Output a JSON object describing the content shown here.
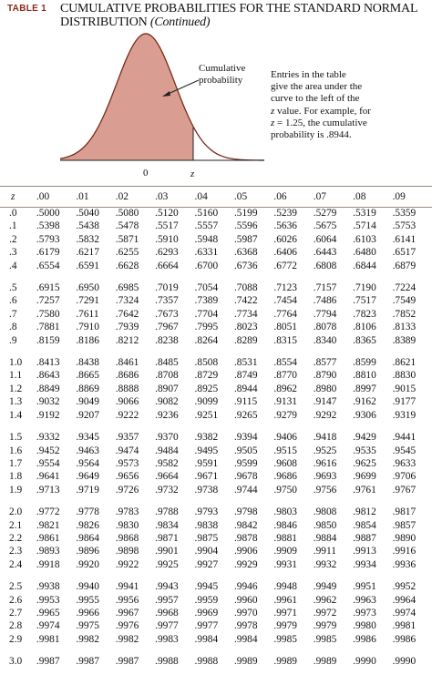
{
  "header": {
    "table_label": "TABLE 1",
    "title_line1": "CUMULATIVE PROBABILITIES FOR THE STANDARD NORMAL",
    "title_line2": "DISTRIBUTION",
    "title_continued": "(Continued)"
  },
  "figure": {
    "curve_label_line1": "Cumulative",
    "curve_label_line2": "probability",
    "origin_label": "0",
    "z_label": "z",
    "shade_color": "#d99e91",
    "curve_color": "#7a2a1a"
  },
  "description": {
    "line1": "Entries in the table",
    "line2": "give the area under the",
    "line3": "curve to the left of the",
    "line4a": "z",
    "line4b": " value. For example, for",
    "line5a": "z",
    "line5b": " = 1.25, the cumulative",
    "line6": "probability is .8944."
  },
  "table": {
    "z_header": "z",
    "columns": [
      ".00",
      ".01",
      ".02",
      ".03",
      ".04",
      ".05",
      ".06",
      ".07",
      ".08",
      ".09"
    ],
    "groups": [
      [
        {
          "z": ".0",
          "values": [
            ".5000",
            ".5040",
            ".5080",
            ".5120",
            ".5160",
            ".5199",
            ".5239",
            ".5279",
            ".5319",
            ".5359"
          ]
        },
        {
          "z": ".1",
          "values": [
            ".5398",
            ".5438",
            ".5478",
            ".5517",
            ".5557",
            ".5596",
            ".5636",
            ".5675",
            ".5714",
            ".5753"
          ]
        },
        {
          "z": ".2",
          "values": [
            ".5793",
            ".5832",
            ".5871",
            ".5910",
            ".5948",
            ".5987",
            ".6026",
            ".6064",
            ".6103",
            ".6141"
          ]
        },
        {
          "z": ".3",
          "values": [
            ".6179",
            ".6217",
            ".6255",
            ".6293",
            ".6331",
            ".6368",
            ".6406",
            ".6443",
            ".6480",
            ".6517"
          ]
        },
        {
          "z": ".4",
          "values": [
            ".6554",
            ".6591",
            ".6628",
            ".6664",
            ".6700",
            ".6736",
            ".6772",
            ".6808",
            ".6844",
            ".6879"
          ]
        }
      ],
      [
        {
          "z": ".5",
          "values": [
            ".6915",
            ".6950",
            ".6985",
            ".7019",
            ".7054",
            ".7088",
            ".7123",
            ".7157",
            ".7190",
            ".7224"
          ]
        },
        {
          "z": ".6",
          "values": [
            ".7257",
            ".7291",
            ".7324",
            ".7357",
            ".7389",
            ".7422",
            ".7454",
            ".7486",
            ".7517",
            ".7549"
          ]
        },
        {
          "z": ".7",
          "values": [
            ".7580",
            ".7611",
            ".7642",
            ".7673",
            ".7704",
            ".7734",
            ".7764",
            ".7794",
            ".7823",
            ".7852"
          ]
        },
        {
          "z": ".8",
          "values": [
            ".7881",
            ".7910",
            ".7939",
            ".7967",
            ".7995",
            ".8023",
            ".8051",
            ".8078",
            ".8106",
            ".8133"
          ]
        },
        {
          "z": ".9",
          "values": [
            ".8159",
            ".8186",
            ".8212",
            ".8238",
            ".8264",
            ".8289",
            ".8315",
            ".8340",
            ".8365",
            ".8389"
          ]
        }
      ],
      [
        {
          "z": "1.0",
          "values": [
            ".8413",
            ".8438",
            ".8461",
            ".8485",
            ".8508",
            ".8531",
            ".8554",
            ".8577",
            ".8599",
            ".8621"
          ]
        },
        {
          "z": "1.1",
          "values": [
            ".8643",
            ".8665",
            ".8686",
            ".8708",
            ".8729",
            ".8749",
            ".8770",
            ".8790",
            ".8810",
            ".8830"
          ]
        },
        {
          "z": "1.2",
          "values": [
            ".8849",
            ".8869",
            ".8888",
            ".8907",
            ".8925",
            ".8944",
            ".8962",
            ".8980",
            ".8997",
            ".9015"
          ]
        },
        {
          "z": "1.3",
          "values": [
            ".9032",
            ".9049",
            ".9066",
            ".9082",
            ".9099",
            ".9115",
            ".9131",
            ".9147",
            ".9162",
            ".9177"
          ]
        },
        {
          "z": "1.4",
          "values": [
            ".9192",
            ".9207",
            ".9222",
            ".9236",
            ".9251",
            ".9265",
            ".9279",
            ".9292",
            ".9306",
            ".9319"
          ]
        }
      ],
      [
        {
          "z": "1.5",
          "values": [
            ".9332",
            ".9345",
            ".9357",
            ".9370",
            ".9382",
            ".9394",
            ".9406",
            ".9418",
            ".9429",
            ".9441"
          ]
        },
        {
          "z": "1.6",
          "values": [
            ".9452",
            ".9463",
            ".9474",
            ".9484",
            ".9495",
            ".9505",
            ".9515",
            ".9525",
            ".9535",
            ".9545"
          ]
        },
        {
          "z": "1.7",
          "values": [
            ".9554",
            ".9564",
            ".9573",
            ".9582",
            ".9591",
            ".9599",
            ".9608",
            ".9616",
            ".9625",
            ".9633"
          ]
        },
        {
          "z": "1.8",
          "values": [
            ".9641",
            ".9649",
            ".9656",
            ".9664",
            ".9671",
            ".9678",
            ".9686",
            ".9693",
            ".9699",
            ".9706"
          ]
        },
        {
          "z": "1.9",
          "values": [
            ".9713",
            ".9719",
            ".9726",
            ".9732",
            ".9738",
            ".9744",
            ".9750",
            ".9756",
            ".9761",
            ".9767"
          ]
        }
      ],
      [
        {
          "z": "2.0",
          "values": [
            ".9772",
            ".9778",
            ".9783",
            ".9788",
            ".9793",
            ".9798",
            ".9803",
            ".9808",
            ".9812",
            ".9817"
          ]
        },
        {
          "z": "2.1",
          "values": [
            ".9821",
            ".9826",
            ".9830",
            ".9834",
            ".9838",
            ".9842",
            ".9846",
            ".9850",
            ".9854",
            ".9857"
          ]
        },
        {
          "z": "2.2",
          "values": [
            ".9861",
            ".9864",
            ".9868",
            ".9871",
            ".9875",
            ".9878",
            ".9881",
            ".9884",
            ".9887",
            ".9890"
          ]
        },
        {
          "z": "2.3",
          "values": [
            ".9893",
            ".9896",
            ".9898",
            ".9901",
            ".9904",
            ".9906",
            ".9909",
            ".9911",
            ".9913",
            ".9916"
          ]
        },
        {
          "z": "2.4",
          "values": [
            ".9918",
            ".9920",
            ".9922",
            ".9925",
            ".9927",
            ".9929",
            ".9931",
            ".9932",
            ".9934",
            ".9936"
          ]
        }
      ],
      [
        {
          "z": "2.5",
          "values": [
            ".9938",
            ".9940",
            ".9941",
            ".9943",
            ".9945",
            ".9946",
            ".9948",
            ".9949",
            ".9951",
            ".9952"
          ]
        },
        {
          "z": "2.6",
          "values": [
            ".9953",
            ".9955",
            ".9956",
            ".9957",
            ".9959",
            ".9960",
            ".9961",
            ".9962",
            ".9963",
            ".9964"
          ]
        },
        {
          "z": "2.7",
          "values": [
            ".9965",
            ".9966",
            ".9967",
            ".9968",
            ".9969",
            ".9970",
            ".9971",
            ".9972",
            ".9973",
            ".9974"
          ]
        },
        {
          "z": "2.8",
          "values": [
            ".9974",
            ".9975",
            ".9976",
            ".9977",
            ".9977",
            ".9978",
            ".9979",
            ".9979",
            ".9980",
            ".9981"
          ]
        },
        {
          "z": "2.9",
          "values": [
            ".9981",
            ".9982",
            ".9982",
            ".9983",
            ".9984",
            ".9984",
            ".9985",
            ".9985",
            ".9986",
            ".9986"
          ]
        }
      ],
      [
        {
          "z": "3.0",
          "values": [
            ".9987",
            ".9987",
            ".9987",
            ".9988",
            ".9988",
            ".9989",
            ".9989",
            ".9989",
            ".9990",
            ".9990"
          ]
        }
      ]
    ]
  }
}
